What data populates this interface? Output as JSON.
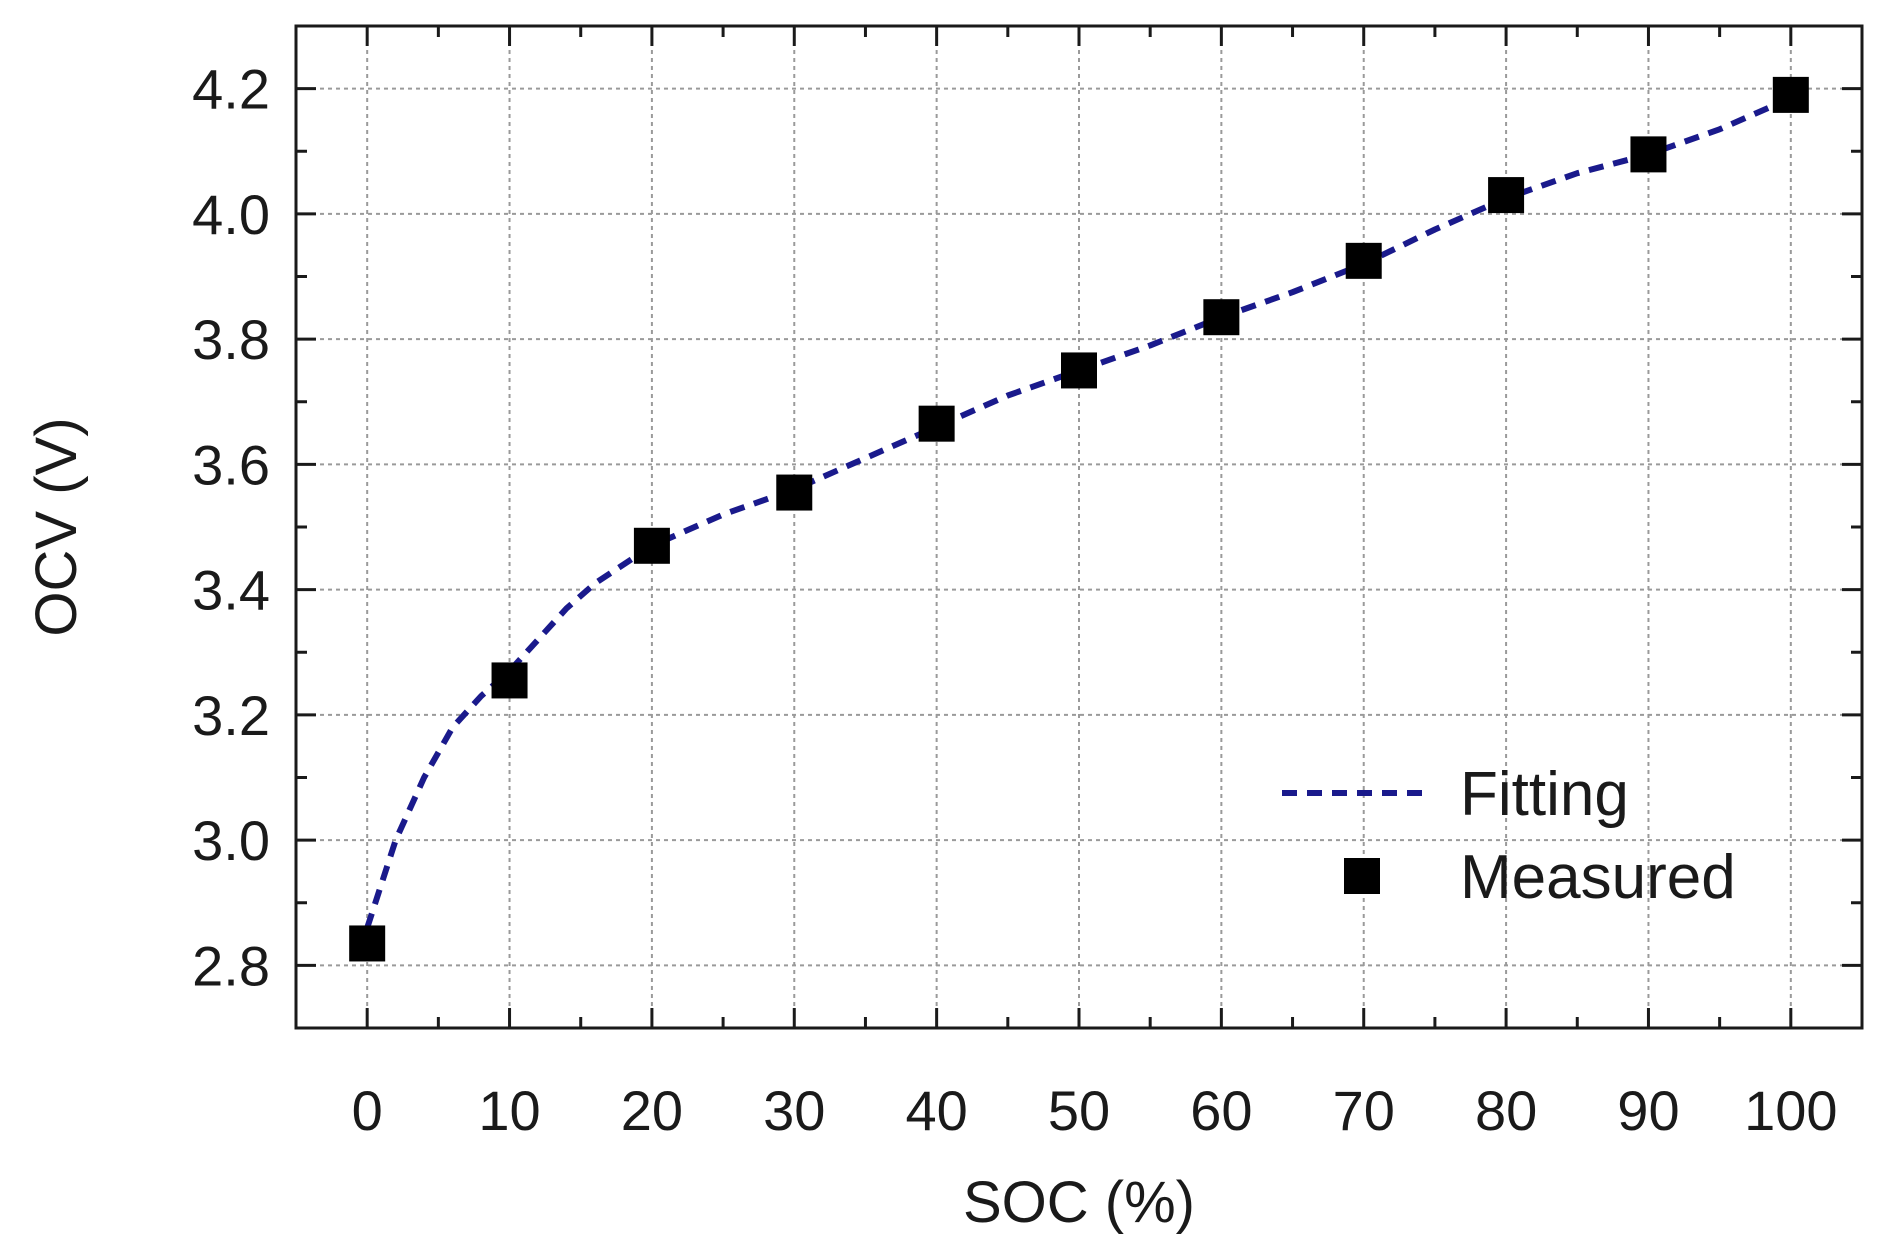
{
  "chart_data": {
    "type": "line",
    "title": "",
    "xlabel": "SOC (%)",
    "ylabel": "OCV (V)",
    "xlim": [
      -5,
      105
    ],
    "ylim": [
      2.7,
      4.3
    ],
    "x_ticks": [
      0,
      10,
      20,
      30,
      40,
      50,
      60,
      70,
      80,
      90,
      100
    ],
    "x_tick_labels": [
      "0",
      "10",
      "20",
      "30",
      "40",
      "50",
      "60",
      "70",
      "80",
      "90",
      "100"
    ],
    "y_ticks": [
      2.8,
      3.0,
      3.2,
      3.4,
      3.6,
      3.8,
      4.0,
      4.2
    ],
    "y_tick_labels": [
      "2.8",
      "3.0",
      "3.2",
      "3.4",
      "3.6",
      "3.8",
      "4.0",
      "4.2"
    ],
    "grid": true,
    "legend_position": "bottom-right",
    "series": [
      {
        "name": "Fitting",
        "style": "dashed-line",
        "color": "#1a1a8c",
        "x": [
          0,
          2,
          4,
          6,
          8,
          10,
          12,
          14,
          16,
          18,
          20,
          25,
          30,
          35,
          40,
          45,
          50,
          55,
          60,
          65,
          70,
          75,
          80,
          85,
          90,
          95,
          100
        ],
        "y": [
          2.86,
          3.0,
          3.1,
          3.18,
          3.23,
          3.27,
          3.32,
          3.37,
          3.41,
          3.44,
          3.47,
          3.52,
          3.56,
          3.61,
          3.66,
          3.71,
          3.75,
          3.79,
          3.835,
          3.875,
          3.92,
          3.975,
          4.025,
          4.065,
          4.095,
          4.135,
          4.185
        ]
      },
      {
        "name": "Measured",
        "style": "square-marker",
        "color": "#000000",
        "x": [
          0,
          10,
          20,
          30,
          40,
          50,
          60,
          70,
          80,
          90,
          100
        ],
        "y": [
          2.835,
          3.255,
          3.47,
          3.555,
          3.665,
          3.75,
          3.835,
          3.925,
          4.03,
          4.095,
          4.19
        ]
      }
    ]
  }
}
